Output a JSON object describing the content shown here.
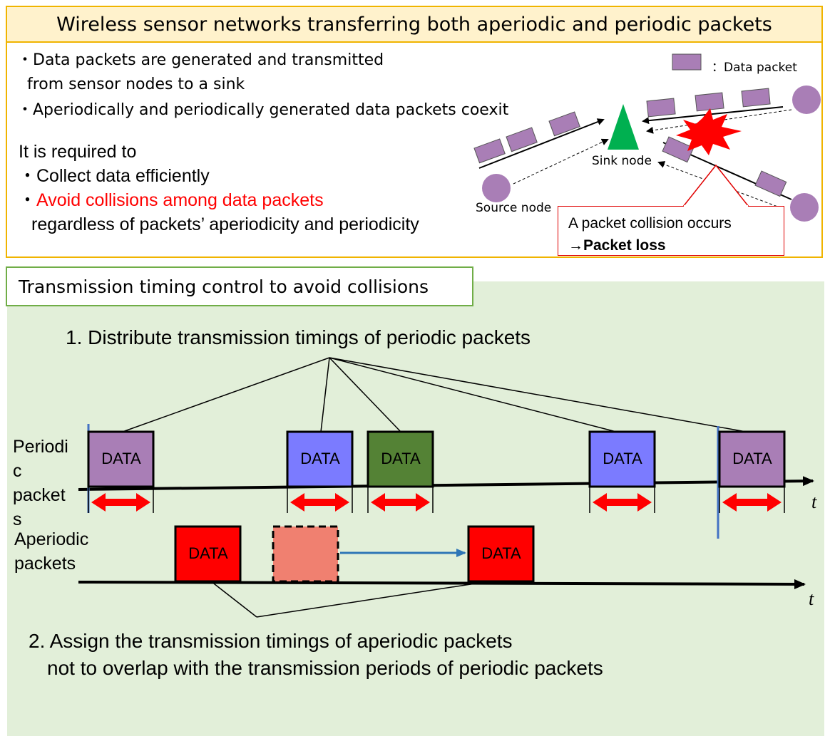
{
  "top": {
    "title": "Wireless sensor networks transferring both aperiodic and periodic packets",
    "bullets": [
      "・Data packets are generated and transmitted",
      "  from sensor nodes to a sink",
      "・Aperiodically and periodically generated data packets coexit"
    ],
    "required_heading": "It is required to",
    "req_item1": "・Collect data efficiently",
    "req_item2_prefix": "・",
    "req_item2_red": "Avoid collisions among data packets",
    "req_item3": "regardless of packets’ aperiodicity and periodicity",
    "legend_label": "：Data packet",
    "sink_label": "Sink node",
    "source_label": "Source node",
    "callout_line1": "A packet collision occurs",
    "callout_line2": "→Packet loss"
  },
  "bottom": {
    "title": "Transmission timing control to avoid collisions",
    "step1": "1. Distribute transmission timings of periodic packets",
    "step2_line1": "2. Assign the transmission timings of aperiodic packets",
    "step2_line2": "not to overlap with the transmission periods of periodic packets",
    "periodic_label_lines": [
      "Periodi",
      "c",
      "packet",
      "s"
    ],
    "aperiodic_label_lines": [
      "Aperiodic",
      "packets"
    ],
    "time_label": "t",
    "data_label": "DATA"
  },
  "colors": {
    "purple": "#a97eb6",
    "blue": "#7b7bff",
    "green": "#548235",
    "red": "#ff0000",
    "salmon": "#f08070",
    "collision": "#ff0000",
    "sink": "#00b050"
  }
}
